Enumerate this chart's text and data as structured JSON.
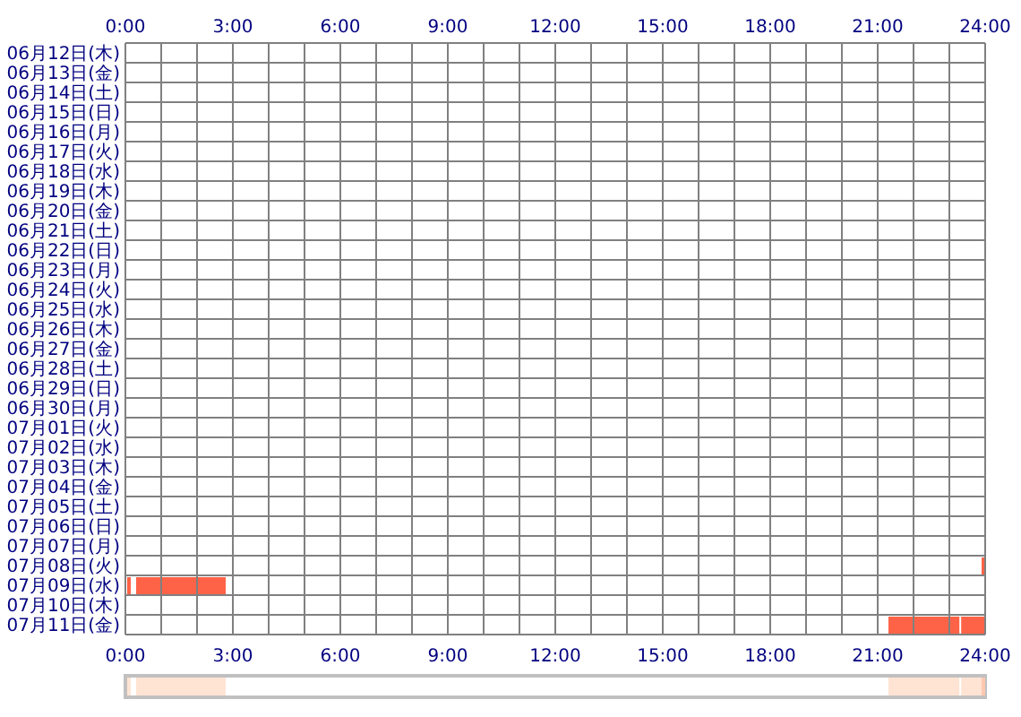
{
  "chart_data": [
    {
      "type": "bar",
      "orientation": "horizontal",
      "grid": true,
      "categories": [
        "06月12日(木)",
        "06月13日(金)",
        "06月14日(土)",
        "06月15日(日)",
        "06月16日(月)",
        "06月17日(火)",
        "06月18日(水)",
        "06月19日(木)",
        "06月20日(金)",
        "06月21日(土)",
        "06月22日(日)",
        "06月23日(月)",
        "06月24日(火)",
        "06月25日(水)",
        "06月26日(木)",
        "06月27日(金)",
        "06月28日(土)",
        "06月29日(日)",
        "06月30日(月)",
        "07月01日(火)",
        "07月02日(水)",
        "07月03日(木)",
        "07月04日(金)",
        "07月05日(土)",
        "07月06日(日)",
        "07月07日(月)",
        "07月08日(火)",
        "07月09日(水)",
        "07月10日(木)",
        "07月11日(金)"
      ],
      "series": [
        {
          "color": "#ff6347",
          "base": [
            null,
            null,
            null,
            null,
            null,
            null,
            null,
            null,
            null,
            null,
            null,
            null,
            null,
            null,
            null,
            null,
            null,
            null,
            null,
            null,
            null,
            null,
            null,
            null,
            null,
            null,
            23.9,
            0.05,
            null,
            21.3
          ],
          "values": [
            null,
            null,
            null,
            null,
            null,
            null,
            null,
            null,
            null,
            null,
            null,
            null,
            null,
            null,
            null,
            null,
            null,
            null,
            null,
            null,
            null,
            null,
            null,
            null,
            null,
            null,
            0.1,
            0.1,
            null,
            1.98
          ]
        },
        {
          "color": "#ff6347",
          "base": [
            null,
            null,
            null,
            null,
            null,
            null,
            null,
            null,
            null,
            null,
            null,
            null,
            null,
            null,
            null,
            null,
            null,
            null,
            null,
            null,
            null,
            null,
            null,
            null,
            null,
            null,
            null,
            0.3,
            null,
            23.33
          ],
          "values": [
            null,
            null,
            null,
            null,
            null,
            null,
            null,
            null,
            null,
            null,
            null,
            null,
            null,
            null,
            null,
            null,
            null,
            null,
            null,
            null,
            null,
            null,
            null,
            null,
            null,
            null,
            null,
            2.5,
            null,
            0.67
          ]
        }
      ],
      "xlim": [
        0,
        24
      ],
      "xticks": [
        {
          "value": 0,
          "label": "0:00"
        },
        {
          "value": 1,
          "label": null
        },
        {
          "value": 2,
          "label": null
        },
        {
          "value": 3,
          "label": "3:00"
        },
        {
          "value": 4,
          "label": null
        },
        {
          "value": 5,
          "label": null
        },
        {
          "value": 6,
          "label": "6:00"
        },
        {
          "value": 7,
          "label": null
        },
        {
          "value": 8,
          "label": null
        },
        {
          "value": 9,
          "label": "9:00"
        },
        {
          "value": 10,
          "label": null
        },
        {
          "value": 11,
          "label": null
        },
        {
          "value": 12,
          "label": "12:00"
        },
        {
          "value": 13,
          "label": null
        },
        {
          "value": 14,
          "label": null
        },
        {
          "value": 15,
          "label": "15:00"
        },
        {
          "value": 16,
          "label": null
        },
        {
          "value": 17,
          "label": null
        },
        {
          "value": 18,
          "label": "18:00"
        },
        {
          "value": 19,
          "label": null
        },
        {
          "value": 20,
          "label": null
        },
        {
          "value": 21,
          "label": "21:00"
        },
        {
          "value": 22,
          "label": null
        },
        {
          "value": 23,
          "label": null
        },
        {
          "value": 24,
          "label": "24:00"
        }
      ],
      "x2lim": [
        0,
        24
      ],
      "x2ticks": [
        {
          "value": 0,
          "label": "0:00"
        },
        {
          "value": 3,
          "label": "3:00"
        },
        {
          "value": 6,
          "label": "6:00"
        },
        {
          "value": 9,
          "label": "9:00"
        },
        {
          "value": 12,
          "label": "12:00"
        },
        {
          "value": 15,
          "label": "15:00"
        },
        {
          "value": 18,
          "label": "18:00"
        },
        {
          "value": 21,
          "label": "21:00"
        },
        {
          "value": 24,
          "label": "24:00"
        }
      ]
    },
    {
      "type": "bar",
      "orientation": "horizontal",
      "categories": [
        null
      ],
      "series": [
        {
          "color": "#ffe4d4",
          "base": [
            0.05
          ],
          "values": [
            0.1
          ]
        },
        {
          "color": "#ffe4d4",
          "base": [
            0.3
          ],
          "values": [
            2.5
          ]
        },
        {
          "color": "#ffe4d4",
          "base": [
            21.3
          ],
          "values": [
            1.98
          ]
        },
        {
          "color": "#ffe4d4",
          "base": [
            23.33
          ],
          "values": [
            0.57
          ]
        },
        {
          "color": "#ffc8b0",
          "base": [
            23.9
          ],
          "values": [
            0.1
          ]
        }
      ],
      "xlim": [
        0,
        24
      ]
    }
  ]
}
